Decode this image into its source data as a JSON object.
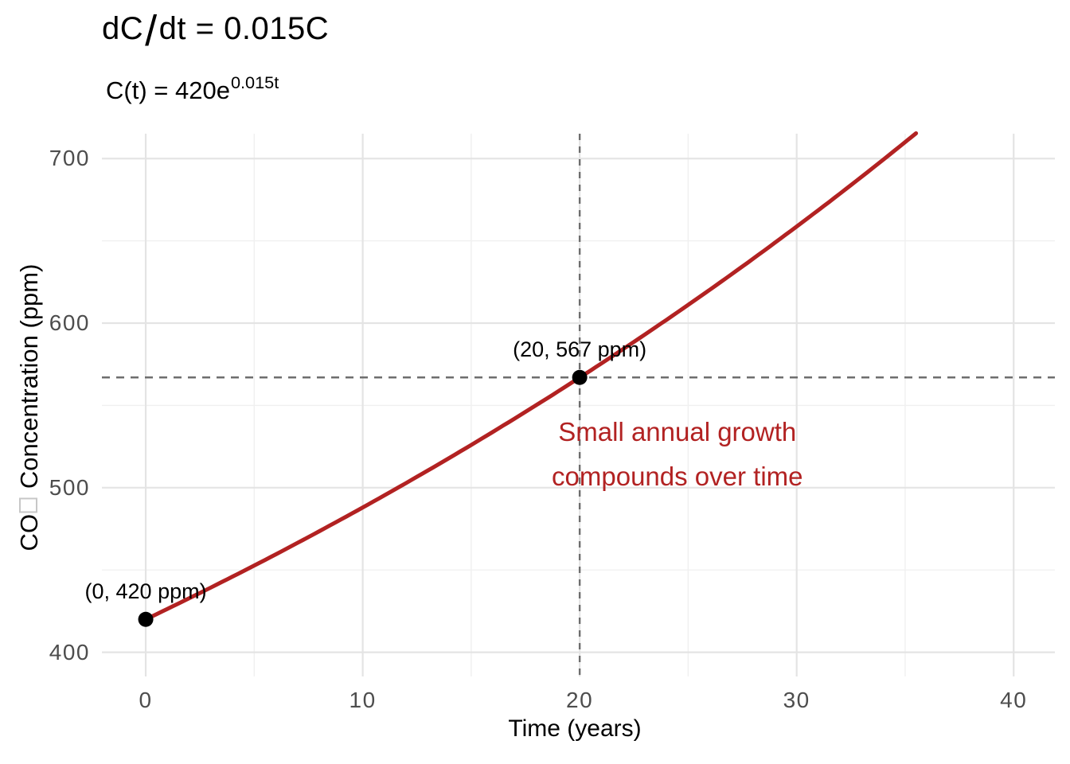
{
  "figure": {
    "title": {
      "parts": [
        "dC",
        "/",
        "dt = 0.015C"
      ]
    },
    "subtitle": {
      "base": "C(t) = 420e",
      "superscript": "0.015t"
    },
    "y_axis": {
      "label_prefix": "CO",
      "label_missing_glyph": "tofu-box",
      "label_suffix": " Concentration (ppm)"
    }
  },
  "chart_data": {
    "type": "line",
    "title": "dC/dt = 0.015C",
    "subtitle": "C(t) = 420e^(0.015t)",
    "xlabel": "Time (years)",
    "ylabel": "CO2 Concentration (ppm)",
    "xlim": [
      -2.02,
      41.9
    ],
    "ylim": [
      385.3,
      715.1
    ],
    "x_ticks": [
      0,
      10,
      20,
      30,
      40
    ],
    "y_ticks": [
      400,
      500,
      600,
      700
    ],
    "x_minor_ticks": [
      5,
      15,
      25,
      35
    ],
    "y_minor_ticks": [
      450,
      550,
      650
    ],
    "grid": "major+minor",
    "legend": "none",
    "series": [
      {
        "name": "C(t) = 420e^(0.015t)",
        "color": "#B22222",
        "width": 5,
        "model": {
          "C0": 420,
          "rate": 0.015,
          "t_start": 0,
          "t_end": 35.55
        },
        "x": [
          0,
          5,
          10,
          15,
          20,
          25,
          30,
          35
        ],
        "values": [
          420,
          452.7,
          487.9,
          525.9,
          567,
          611.1,
          658.7,
          710
        ]
      }
    ],
    "points": [
      {
        "x": 0,
        "y": 420,
        "label": "(0, 420 ppm)",
        "color": "#000000"
      },
      {
        "x": 20,
        "y": 567,
        "label": "(20, 567 ppm)",
        "color": "#000000"
      }
    ],
    "reference_lines": [
      {
        "type": "hline",
        "y": 567,
        "style": "dashed",
        "color": "#6e6e6e"
      },
      {
        "type": "vline",
        "x": 20,
        "style": "dashed",
        "color": "#6e6e6e"
      }
    ],
    "annotation": {
      "lines": [
        "Small annual growth",
        "compounds over time"
      ],
      "x": 24.5,
      "y": 520,
      "color": "#B22222"
    }
  },
  "colors": {
    "background": "#ffffff",
    "grid_major": "#e4e4e4",
    "grid_minor": "#f0f0f0",
    "tick_label": "#4d4d4d",
    "curve": "#B22222",
    "dashed_reference": "#6e6e6e"
  }
}
